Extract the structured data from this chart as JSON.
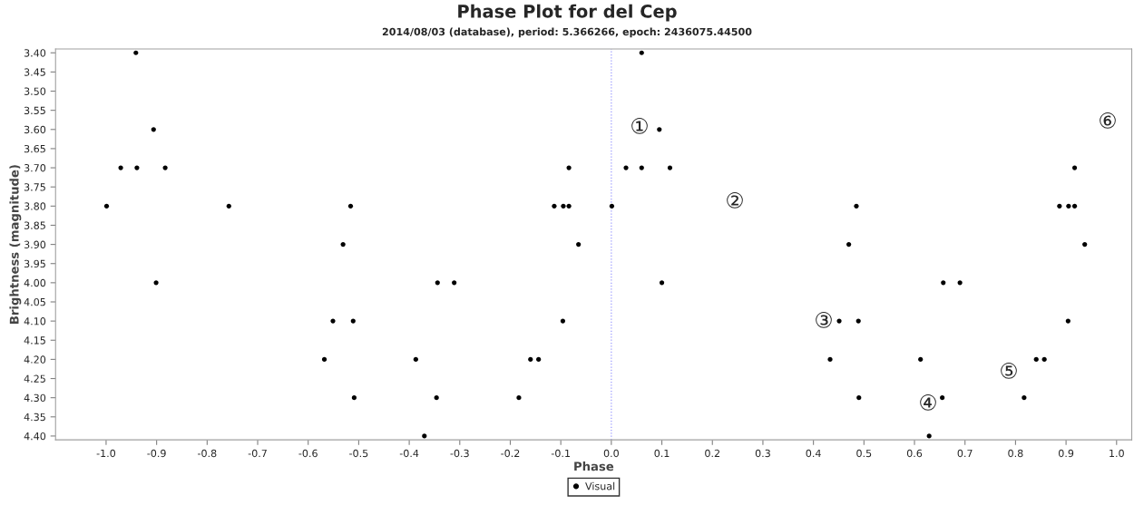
{
  "chart_data": {
    "type": "scatter",
    "title": "Phase Plot for del Cep",
    "subtitle": "2014/08/03 (database), period: 5.366266, epoch: 2436075.44500",
    "xlabel": "Phase",
    "ylabel": "Brightness (magnitude)",
    "series": [
      {
        "name": "Visual",
        "color": "#000000",
        "x": [
          -0.941,
          -0.906,
          -0.971,
          -0.939,
          -0.883,
          -0.999,
          -0.757,
          -0.531,
          -0.901,
          -0.551,
          -0.568,
          -0.516,
          -0.344,
          -0.311,
          -0.511,
          -0.387,
          -0.509,
          -0.346,
          -0.37,
          -0.084,
          -0.113,
          -0.095,
          -0.084,
          -0.065,
          -0.096,
          -0.16,
          -0.144,
          -0.183,
          0.001,
          0.06,
          0.095,
          0.029,
          0.06,
          0.116,
          0.485,
          0.47,
          0.1,
          0.451,
          0.489,
          0.433,
          0.49,
          0.917,
          0.887,
          0.905,
          0.917,
          0.937,
          0.657,
          0.69,
          0.904,
          0.612,
          0.841,
          0.857,
          0.655,
          0.817,
          0.629
        ],
        "values": [
          3.4,
          3.6,
          3.7,
          3.7,
          3.7,
          3.8,
          3.8,
          3.9,
          4.0,
          4.1,
          4.2,
          3.8,
          4.0,
          4.0,
          4.1,
          4.2,
          4.3,
          4.3,
          4.4,
          3.7,
          3.8,
          3.8,
          3.8,
          3.9,
          4.1,
          4.2,
          4.2,
          4.3,
          3.8,
          3.4,
          3.6,
          3.7,
          3.7,
          3.7,
          3.8,
          3.9,
          4.0,
          4.1,
          4.1,
          4.2,
          4.3,
          3.7,
          3.8,
          3.8,
          3.8,
          3.9,
          4.0,
          4.0,
          4.1,
          4.2,
          4.2,
          4.2,
          4.3,
          4.3,
          4.4
        ]
      }
    ],
    "marker": "circle",
    "legend": "bottom",
    "grid": false,
    "xlim": [
      -1.1,
      1.03
    ],
    "ylim": [
      4.41,
      3.39
    ],
    "xticks": [
      {
        "value": -1.0,
        "label": "-1.0"
      },
      {
        "value": -0.9,
        "label": "-0.9"
      },
      {
        "value": -0.8,
        "label": "-0.8"
      },
      {
        "value": -0.7,
        "label": "-0.7"
      },
      {
        "value": -0.6,
        "label": "-0.6"
      },
      {
        "value": -0.5,
        "label": "-0.5"
      },
      {
        "value": -0.4,
        "label": "-0.4"
      },
      {
        "value": -0.3,
        "label": "-0.3"
      },
      {
        "value": -0.2,
        "label": "-0.2"
      },
      {
        "value": -0.1,
        "label": "-0.1"
      },
      {
        "value": 0.0,
        "label": "0.0"
      },
      {
        "value": 0.1,
        "label": "0.1"
      },
      {
        "value": 0.2,
        "label": "0.2"
      },
      {
        "value": 0.3,
        "label": "0.3"
      },
      {
        "value": 0.4,
        "label": "0.4"
      },
      {
        "value": 0.5,
        "label": "0.5"
      },
      {
        "value": 0.6,
        "label": "0.6"
      },
      {
        "value": 0.7,
        "label": "0.7"
      },
      {
        "value": 0.8,
        "label": "0.8"
      },
      {
        "value": 0.9,
        "label": "0.9"
      },
      {
        "value": 1.0,
        "label": "1.0"
      }
    ],
    "yticks": [
      {
        "value": 3.4,
        "label": "3.40"
      },
      {
        "value": 3.45,
        "label": "3.45"
      },
      {
        "value": 3.5,
        "label": "3.50"
      },
      {
        "value": 3.55,
        "label": "3.55"
      },
      {
        "value": 3.6,
        "label": "3.60"
      },
      {
        "value": 3.65,
        "label": "3.65"
      },
      {
        "value": 3.7,
        "label": "3.70"
      },
      {
        "value": 3.75,
        "label": "3.75"
      },
      {
        "value": 3.8,
        "label": "3.80"
      },
      {
        "value": 3.85,
        "label": "3.85"
      },
      {
        "value": 3.9,
        "label": "3.90"
      },
      {
        "value": 3.95,
        "label": "3.95"
      },
      {
        "value": 4.0,
        "label": "4.00"
      },
      {
        "value": 4.05,
        "label": "4.05"
      },
      {
        "value": 4.1,
        "label": "4.10"
      },
      {
        "value": 4.15,
        "label": "4.15"
      },
      {
        "value": 4.2,
        "label": "4.20"
      },
      {
        "value": 4.25,
        "label": "4.25"
      },
      {
        "value": 4.3,
        "label": "4.30"
      },
      {
        "value": 4.35,
        "label": "4.35"
      },
      {
        "value": 4.4,
        "label": "4.40"
      }
    ],
    "ref_lines": [
      {
        "axis": "x",
        "value": 0.0,
        "color": "#9999ff",
        "line_style": "dotted"
      }
    ],
    "annotations": [
      "①",
      "②",
      "③",
      "④",
      "⑤",
      "⑥"
    ]
  }
}
